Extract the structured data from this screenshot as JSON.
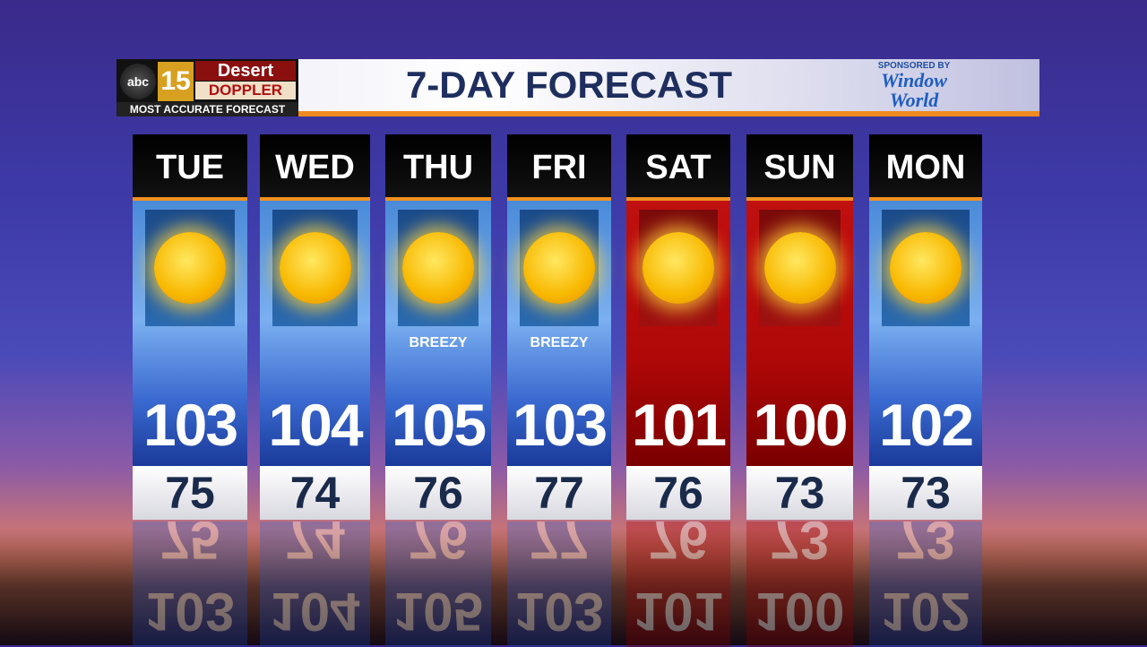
{
  "header": {
    "logo": {
      "network": "abc",
      "channel": "15",
      "brand_top": "Desert",
      "brand_bottom": "DOPPLER",
      "tagline": "MOST ACCURATE FORECAST"
    },
    "title": "7-DAY FORECAST",
    "sponsor": {
      "label": "SPONSORED BY",
      "name_line1": "Window",
      "name_line2": "World"
    }
  },
  "colors": {
    "accent": "#f09020",
    "title": "#1e2e5e",
    "cool_panel": "#3a6ad0",
    "hot_panel": "#b00808"
  },
  "days": [
    {
      "day": "TUE",
      "icon": "sunny-icon",
      "condition": "",
      "high": "103",
      "low": "75",
      "hot": false
    },
    {
      "day": "WED",
      "icon": "sunny-icon",
      "condition": "",
      "high": "104",
      "low": "74",
      "hot": false
    },
    {
      "day": "THU",
      "icon": "sunny-icon",
      "condition": "BREEZY",
      "high": "105",
      "low": "76",
      "hot": false
    },
    {
      "day": "FRI",
      "icon": "sunny-icon",
      "condition": "BREEZY",
      "high": "103",
      "low": "77",
      "hot": false
    },
    {
      "day": "SAT",
      "icon": "sunny-icon",
      "condition": "",
      "high": "101",
      "low": "76",
      "hot": true
    },
    {
      "day": "SUN",
      "icon": "sunny-icon",
      "condition": "",
      "high": "100",
      "low": "73",
      "hot": true
    },
    {
      "day": "MON",
      "icon": "sunny-icon",
      "condition": "",
      "high": "102",
      "low": "73",
      "hot": false
    }
  ]
}
